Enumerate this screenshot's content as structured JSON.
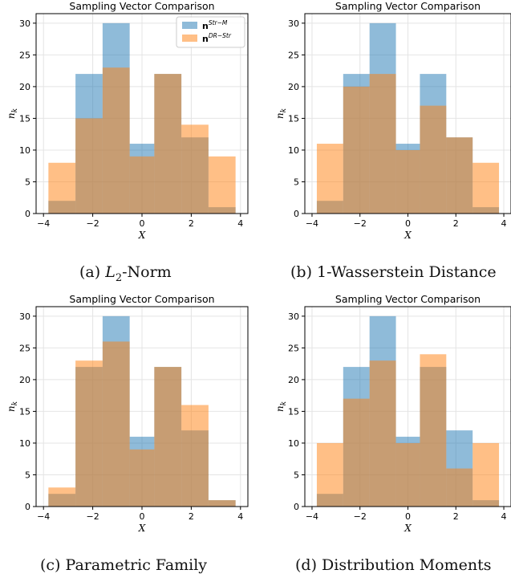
{
  "colors": {
    "blue": "#1f77b4",
    "orange": "#ff7f0e",
    "grid": "#e4e4e4"
  },
  "legend": {
    "items": [
      {
        "base": "n",
        "sup": "Str−M",
        "color": "#1f77b4"
      },
      {
        "base": "n",
        "sup": "DR−Str",
        "color": "#ff7f0e"
      }
    ]
  },
  "captions": [
    {
      "tag": "(a)",
      "math": "L",
      "sub": "2",
      "text": "-Norm"
    },
    {
      "tag": "(b)",
      "math": "",
      "sub": "",
      "text": "1-Wasserstein Distance"
    },
    {
      "tag": "(c)",
      "math": "",
      "sub": "",
      "text": "Parametric Family"
    },
    {
      "tag": "(d)",
      "math": "",
      "sub": "",
      "text": "Distribution Moments"
    }
  ],
  "chart_data": [
    {
      "type": "bar",
      "title": "Sampling Vector Comparison",
      "xlabel": "X",
      "ylabel": "n_k",
      "bin_edges": [
        -3.8,
        -2.7,
        -1.6,
        -0.5,
        0.5,
        1.6,
        2.7,
        3.8
      ],
      "xlim": [
        -4.3,
        4.3
      ],
      "ylim": [
        0,
        31.5
      ],
      "xticks": [
        -4,
        -2,
        0,
        2,
        4
      ],
      "yticks": [
        0,
        5,
        10,
        15,
        20,
        25,
        30
      ],
      "grid": true,
      "legend_position": "top-right",
      "series": [
        {
          "name": "n^{Str−M}",
          "values": [
            2,
            22,
            30,
            11,
            22,
            12,
            1
          ]
        },
        {
          "name": "n^{DR−Str}",
          "values": [
            8,
            15,
            23,
            9,
            22,
            14,
            9
          ]
        }
      ]
    },
    {
      "type": "bar",
      "title": "Sampling Vector Comparison",
      "xlabel": "X",
      "ylabel": "n_k",
      "bin_edges": [
        -3.8,
        -2.7,
        -1.6,
        -0.5,
        0.5,
        1.6,
        2.7,
        3.8
      ],
      "xlim": [
        -4.3,
        4.3
      ],
      "ylim": [
        0,
        31.5
      ],
      "xticks": [
        -4,
        -2,
        0,
        2,
        4
      ],
      "yticks": [
        0,
        5,
        10,
        15,
        20,
        25,
        30
      ],
      "grid": true,
      "series": [
        {
          "values": [
            2,
            22,
            30,
            11,
            22,
            12,
            1
          ]
        },
        {
          "values": [
            11,
            20,
            22,
            10,
            17,
            12,
            8
          ]
        }
      ]
    },
    {
      "type": "bar",
      "title": "Sampling Vector Comparison",
      "xlabel": "X",
      "ylabel": "n_k",
      "bin_edges": [
        -3.8,
        -2.7,
        -1.6,
        -0.5,
        0.5,
        1.6,
        2.7,
        3.8
      ],
      "xlim": [
        -4.3,
        4.3
      ],
      "ylim": [
        0,
        31.5
      ],
      "xticks": [
        -4,
        -2,
        0,
        2,
        4
      ],
      "yticks": [
        0,
        5,
        10,
        15,
        20,
        25,
        30
      ],
      "grid": true,
      "series": [
        {
          "values": [
            2,
            22,
            30,
            11,
            22,
            12,
            1
          ]
        },
        {
          "values": [
            3,
            23,
            26,
            9,
            22,
            16,
            1
          ]
        }
      ]
    },
    {
      "type": "bar",
      "title": "Sampling Vector Comparison",
      "xlabel": "X",
      "ylabel": "n_k",
      "bin_edges": [
        -3.8,
        -2.7,
        -1.6,
        -0.5,
        0.5,
        1.6,
        2.7,
        3.8
      ],
      "xlim": [
        -4.3,
        4.3
      ],
      "ylim": [
        0,
        31.5
      ],
      "xticks": [
        -4,
        -2,
        0,
        2,
        4
      ],
      "yticks": [
        0,
        5,
        10,
        15,
        20,
        25,
        30
      ],
      "grid": true,
      "series": [
        {
          "values": [
            2,
            22,
            30,
            11,
            22,
            12,
            1
          ]
        },
        {
          "values": [
            10,
            17,
            23,
            10,
            24,
            6,
            10
          ]
        }
      ]
    }
  ]
}
